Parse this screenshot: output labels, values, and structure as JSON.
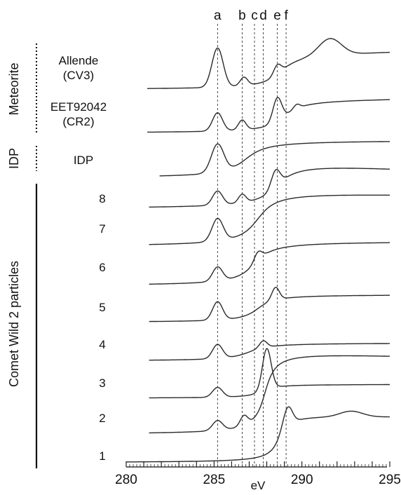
{
  "chart_data": {
    "type": "line",
    "xlabel": "eV",
    "xlim": [
      280,
      295
    ],
    "x_ticks": [
      "280",
      "285",
      "290",
      "295"
    ],
    "reference_lines": [
      {
        "label": "a",
        "x": 285.2
      },
      {
        "label": "b",
        "x": 286.6
      },
      {
        "label": "c",
        "x": 287.3
      },
      {
        "label": "d",
        "x": 287.8
      },
      {
        "label": "e",
        "x": 288.6
      },
      {
        "label": "f",
        "x": 289.1
      }
    ],
    "groups": [
      {
        "label": "Meteorite",
        "line": "dotted"
      },
      {
        "label": "IDP",
        "line": "dotted"
      },
      {
        "label": "Comet Wild 2 particles",
        "line": "solid"
      }
    ],
    "series": [
      {
        "name": "Allende\n(CV3)",
        "group": "Meteorite",
        "peaks": [
          {
            "eV": 285.2,
            "h": 56,
            "w": 0.45
          },
          {
            "eV": 286.7,
            "h": 12,
            "w": 0.3
          },
          {
            "eV": 288.6,
            "h": 14,
            "w": 0.3
          },
          {
            "eV": 291.6,
            "h": 24,
            "w": 0.9
          }
        ],
        "edge": {
          "eV": 288.8,
          "h": 52,
          "w": 0.8
        },
        "post_slope": 3.5
      },
      {
        "name": "EET92042\n(CR2)",
        "group": "Meteorite",
        "peaks": [
          {
            "eV": 285.2,
            "h": 26,
            "w": 0.4
          },
          {
            "eV": 286.6,
            "h": 14,
            "w": 0.3
          },
          {
            "eV": 288.6,
            "h": 34,
            "w": 0.35
          },
          {
            "eV": 289.7,
            "h": 6,
            "w": 0.25
          }
        ],
        "edge": {
          "eV": 289.0,
          "h": 48,
          "w": 0.8
        },
        "post_slope": 2
      },
      {
        "name": "IDP",
        "group": "IDP",
        "peaks": [
          {
            "eV": 285.2,
            "h": 40,
            "w": 0.5
          }
        ],
        "edge": {
          "eV": 286.8,
          "h": 54,
          "w": 0.9
        },
        "post_slope": 0
      },
      {
        "name": "8",
        "group": "Comet Wild 2 particles",
        "peaks": [
          {
            "eV": 285.2,
            "h": 20,
            "w": 0.4
          },
          {
            "eV": 286.6,
            "h": 12,
            "w": 0.3
          },
          {
            "eV": 288.5,
            "h": 24,
            "w": 0.35
          }
        ],
        "edge": {
          "eV": 288.6,
          "h": 68,
          "w": 0.9
        },
        "post_slope": -8
      },
      {
        "name": "7",
        "group": "Comet Wild 2 particles",
        "peaks": [
          {
            "eV": 285.2,
            "h": 32,
            "w": 0.45
          }
        ],
        "edge": {
          "eV": 287.5,
          "h": 80,
          "w": 0.8
        },
        "post_slope": -3
      },
      {
        "name": "6",
        "group": "Comet Wild 2 particles",
        "peaks": [
          {
            "eV": 285.2,
            "h": 20,
            "w": 0.4
          },
          {
            "eV": 287.5,
            "h": 12,
            "w": 0.3
          }
        ],
        "edge": {
          "eV": 287.3,
          "h": 64,
          "w": 0.8
        },
        "post_slope": 0
      },
      {
        "name": "5",
        "group": "Comet Wild 2 particles",
        "peaks": [
          {
            "eV": 285.2,
            "h": 26,
            "w": 0.4
          },
          {
            "eV": 288.5,
            "h": 18,
            "w": 0.3
          }
        ],
        "edge": {
          "eV": 287.5,
          "h": 40,
          "w": 0.7
        },
        "post_slope": 0
      },
      {
        "name": "4",
        "group": "Comet Wild 2 particles",
        "peaks": [
          {
            "eV": 285.2,
            "h": 20,
            "w": 0.4
          },
          {
            "eV": 287.8,
            "h": 10,
            "w": 0.3
          }
        ],
        "edge": {
          "eV": 287.0,
          "h": 26,
          "w": 0.9
        },
        "post_slope": 0
      },
      {
        "name": "3",
        "group": "Comet Wild 2 particles",
        "peaks": [
          {
            "eV": 285.2,
            "h": 14,
            "w": 0.4
          },
          {
            "eV": 288.0,
            "h": 58,
            "w": 0.35
          }
        ],
        "edge": {
          "eV": 287.7,
          "h": 20,
          "w": 0.6
        },
        "post_slope": 0
      },
      {
        "name": "2",
        "group": "Comet Wild 2 particles",
        "peaks": [
          {
            "eV": 285.2,
            "h": 14,
            "w": 0.4
          },
          {
            "eV": 286.7,
            "h": 14,
            "w": 0.3
          }
        ],
        "edge": {
          "eV": 287.9,
          "h": 120,
          "w": 0.45
        },
        "post_slope": -5
      },
      {
        "name": "1",
        "group": "Comet Wild 2 particles",
        "peaks": [
          {
            "eV": 289.2,
            "h": 26,
            "w": 0.35
          },
          {
            "eV": 292.8,
            "h": 8,
            "w": 0.9
          }
        ],
        "edge": {
          "eV": 288.7,
          "h": 70,
          "w": 0.45
        },
        "post_slope": -3
      }
    ]
  }
}
